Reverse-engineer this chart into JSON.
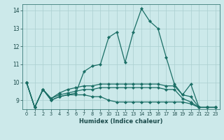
{
  "xlabel": "Humidex (Indice chaleur)",
  "ylabel": "",
  "xlim": [
    -0.5,
    23.5
  ],
  "ylim": [
    8.5,
    14.35
  ],
  "yticks": [
    9,
    10,
    11,
    12,
    13,
    14
  ],
  "xticks": [
    0,
    1,
    2,
    3,
    4,
    5,
    6,
    7,
    8,
    9,
    10,
    11,
    12,
    13,
    14,
    15,
    16,
    17,
    18,
    19,
    20,
    21,
    22,
    23
  ],
  "background_color": "#cce9ea",
  "grid_color": "#aacfcf",
  "line_color": "#1a6e65",
  "lines": [
    {
      "x": [
        0,
        1,
        2,
        3,
        4,
        5,
        6,
        7,
        8,
        9,
        10,
        11,
        12,
        13,
        14,
        15,
        16,
        17,
        18,
        19,
        20,
        21,
        22,
        23
      ],
      "y": [
        10.0,
        8.6,
        9.6,
        9.0,
        9.2,
        9.3,
        9.4,
        10.6,
        10.9,
        11.0,
        12.5,
        12.8,
        11.1,
        12.8,
        14.1,
        13.4,
        13.0,
        11.4,
        9.9,
        9.3,
        9.9,
        8.6,
        8.6,
        8.6
      ]
    },
    {
      "x": [
        0,
        1,
        2,
        3,
        4,
        5,
        6,
        7,
        8,
        9,
        10,
        11,
        12,
        13,
        14,
        15,
        16,
        17,
        18,
        19,
        20,
        21,
        22,
        23
      ],
      "y": [
        10.0,
        8.6,
        9.6,
        9.1,
        9.4,
        9.6,
        9.7,
        9.8,
        9.8,
        9.9,
        9.9,
        9.9,
        9.9,
        9.9,
        9.9,
        9.9,
        9.9,
        9.8,
        9.8,
        9.3,
        9.2,
        8.6,
        8.6,
        8.6
      ]
    },
    {
      "x": [
        0,
        1,
        2,
        3,
        4,
        5,
        6,
        7,
        8,
        9,
        10,
        11,
        12,
        13,
        14,
        15,
        16,
        17,
        18,
        19,
        20,
        21,
        22,
        23
      ],
      "y": [
        10.0,
        8.6,
        9.6,
        9.1,
        9.3,
        9.4,
        9.5,
        9.6,
        9.6,
        9.7,
        9.7,
        9.7,
        9.7,
        9.7,
        9.7,
        9.7,
        9.7,
        9.6,
        9.6,
        9.1,
        8.9,
        8.6,
        8.6,
        8.6
      ]
    },
    {
      "x": [
        0,
        1,
        2,
        3,
        4,
        5,
        6,
        7,
        8,
        9,
        10,
        11,
        12,
        13,
        14,
        15,
        16,
        17,
        18,
        19,
        20,
        21,
        22,
        23
      ],
      "y": [
        10.0,
        8.6,
        9.6,
        9.0,
        9.2,
        9.3,
        9.3,
        9.3,
        9.2,
        9.2,
        9.0,
        8.9,
        8.9,
        8.9,
        8.9,
        8.9,
        8.9,
        8.9,
        8.9,
        8.9,
        8.8,
        8.6,
        8.6,
        8.6
      ]
    }
  ],
  "marker": "D",
  "markersize": 2.2,
  "linewidth": 0.9,
  "figsize": [
    3.2,
    2.0
  ],
  "dpi": 100
}
